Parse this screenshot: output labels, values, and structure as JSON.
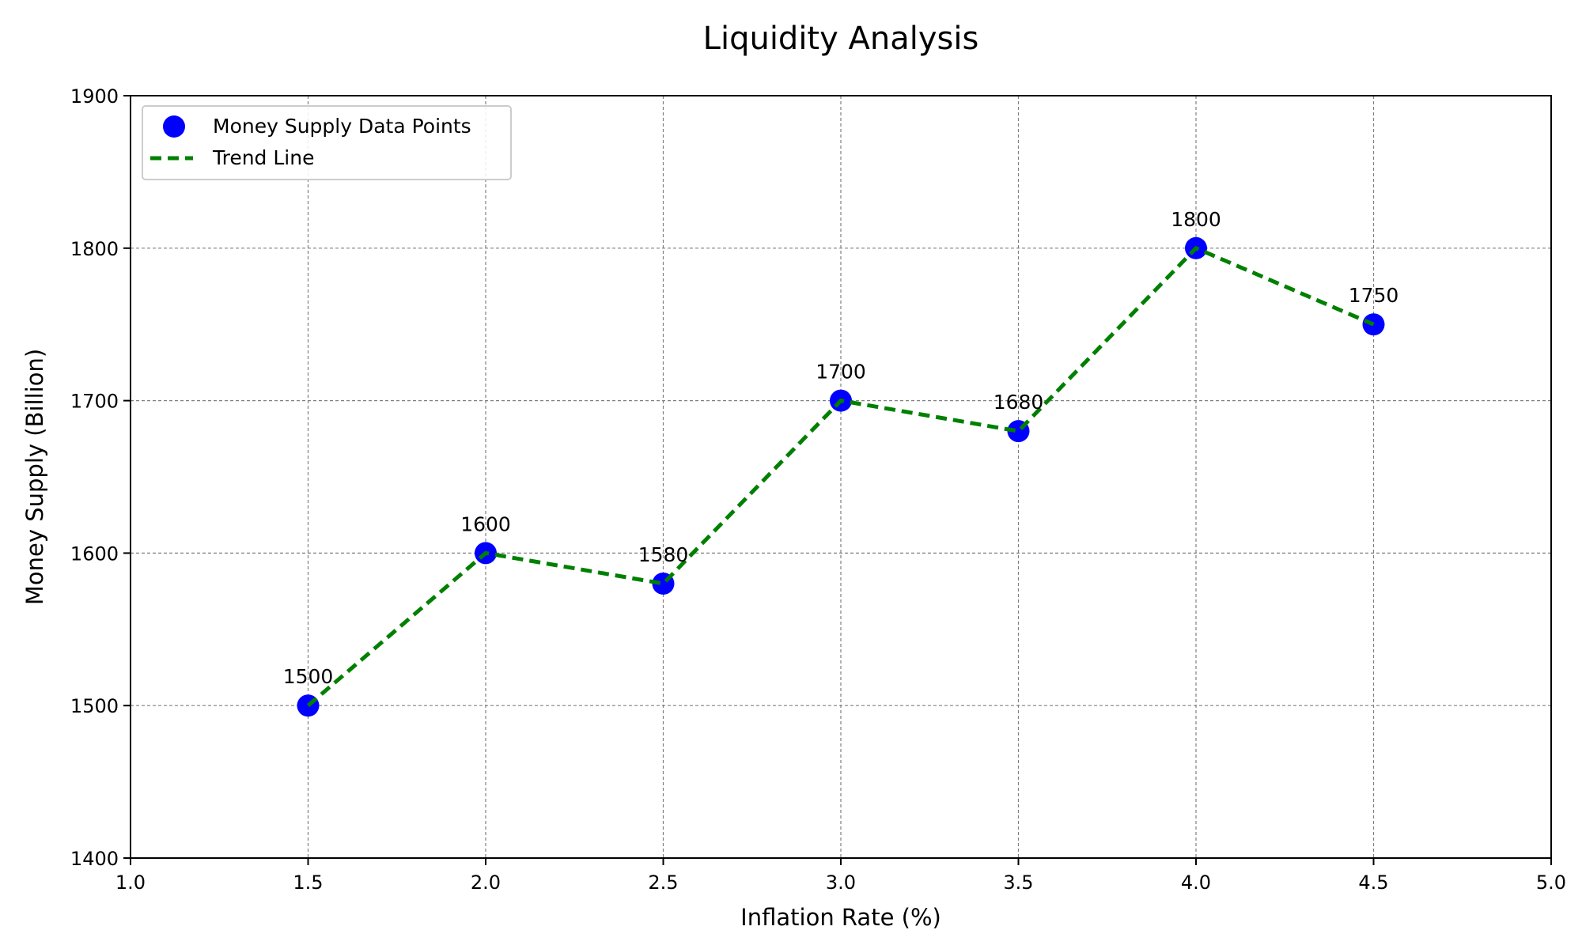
{
  "chart_data": {
    "type": "scatter",
    "title": "Liquidity Analysis",
    "xlabel": "Inflation Rate (%)",
    "ylabel": "Money Supply (Billion)",
    "xlim": [
      1.0,
      5.0
    ],
    "ylim": [
      1400,
      1900
    ],
    "xticks": [
      1.0,
      1.5,
      2.0,
      2.5,
      3.0,
      3.5,
      4.0,
      4.5,
      5.0
    ],
    "xtick_labels": [
      "1.0",
      "1.5",
      "2.0",
      "2.5",
      "3.0",
      "3.5",
      "4.0",
      "4.5",
      "5.0"
    ],
    "yticks": [
      1400,
      1500,
      1600,
      1700,
      1800,
      1900
    ],
    "ytick_labels": [
      "1400",
      "1500",
      "1600",
      "1700",
      "1800",
      "1900"
    ],
    "grid": true,
    "legend_position": "top-left",
    "series": [
      {
        "name": "Money Supply Data Points",
        "kind": "scatter",
        "color": "#0000ff",
        "x": [
          1.5,
          2.0,
          2.5,
          3.0,
          3.5,
          4.0,
          4.5
        ],
        "y": [
          1500,
          1600,
          1580,
          1700,
          1680,
          1800,
          1750
        ],
        "labels": [
          "1500",
          "1600",
          "1580",
          "1700",
          "1680",
          "1800",
          "1750"
        ]
      },
      {
        "name": "Trend Line",
        "kind": "line",
        "style": "dashed",
        "color": "#008000",
        "x": [
          1.5,
          2.0,
          2.5,
          3.0,
          3.5,
          4.0,
          4.5
        ],
        "y": [
          1500,
          1600,
          1580,
          1700,
          1680,
          1800,
          1750
        ]
      }
    ]
  }
}
